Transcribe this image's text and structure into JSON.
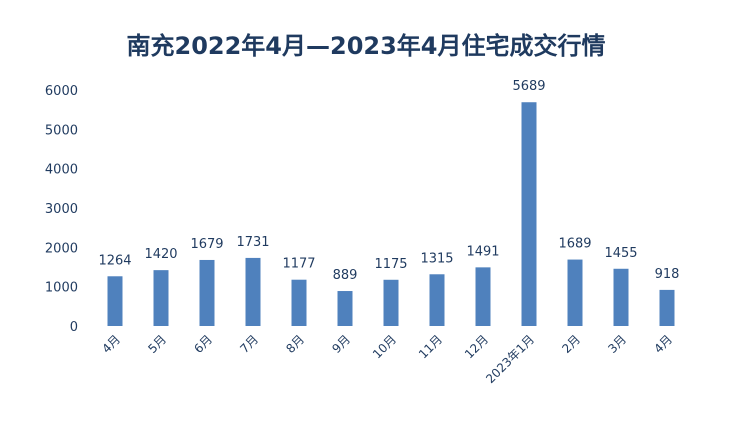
{
  "chart_data": {
    "type": "bar",
    "title": "南充2022年4月—2023年4月住宅成交行情",
    "categories": [
      "4月",
      "5月",
      "6月",
      "7月",
      "8月",
      "9月",
      "10月",
      "11月",
      "12月",
      "2023年1月",
      "2月",
      "3月",
      "4月"
    ],
    "values": [
      1264,
      1420,
      1679,
      1731,
      1177,
      889,
      1175,
      1315,
      1491,
      5689,
      1689,
      1455,
      918
    ],
    "ylim": [
      0,
      6000
    ],
    "yticks": [
      0,
      1000,
      2000,
      3000,
      4000,
      5000,
      6000
    ],
    "grid": false,
    "legend": "none",
    "xlabel": "",
    "ylabel": "",
    "bar_color": "#4f81bd",
    "text_color": "#1f3a5f"
  }
}
